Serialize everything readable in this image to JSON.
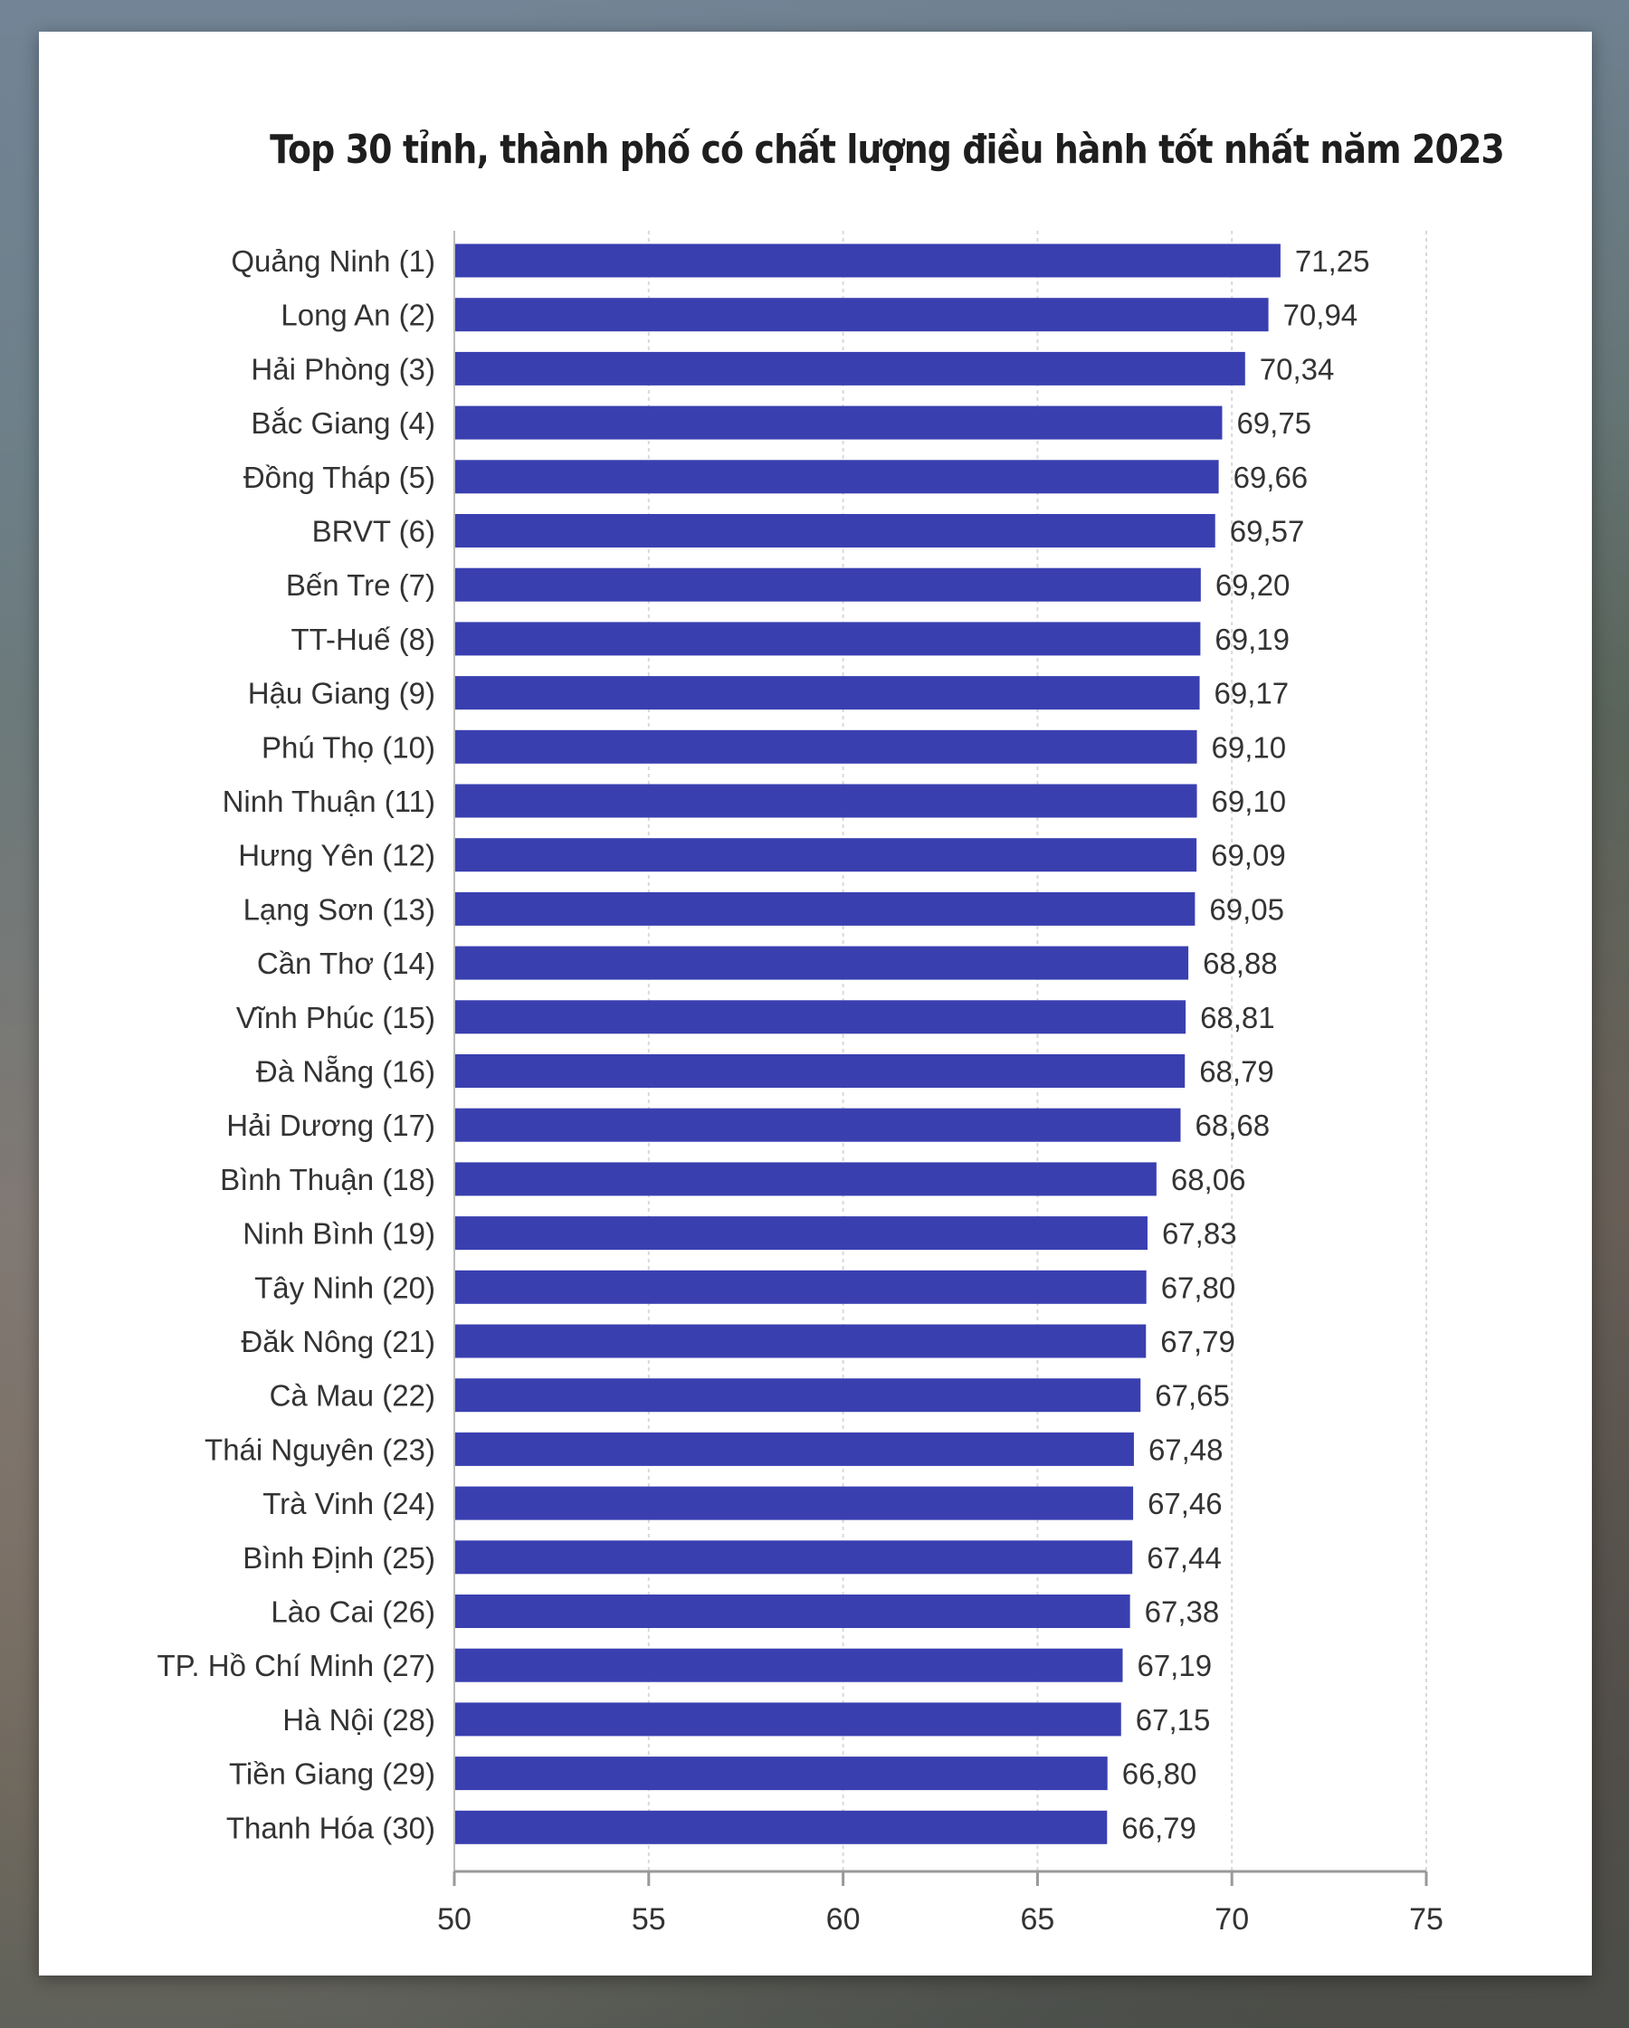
{
  "chart_data": {
    "type": "bar",
    "orientation": "horizontal",
    "title": "Top 30 tỉnh, thành phố có chất lượng điều hành tốt nhất năm 2023",
    "xlabel": "",
    "ylabel": "",
    "xlim": [
      50,
      75
    ],
    "xticks": [
      50,
      55,
      60,
      65,
      70,
      75
    ],
    "xtick_labels": [
      "50",
      "55",
      "60",
      "65",
      "70",
      "75"
    ],
    "grid": "vertical dashed",
    "bar_color": "#3a3fb0",
    "categories": [
      "Quảng Ninh (1)",
      "Long An (2)",
      "Hải Phòng (3)",
      "Bắc Giang (4)",
      "Đồng Tháp (5)",
      "BRVT (6)",
      "Bến Tre (7)",
      "TT-Huế (8)",
      "Hậu Giang (9)",
      "Phú Thọ (10)",
      "Ninh Thuận (11)",
      "Hưng Yên (12)",
      "Lạng Sơn (13)",
      "Cần Thơ (14)",
      "Vĩnh Phúc (15)",
      "Đà Nẵng (16)",
      "Hải Dương (17)",
      "Bình Thuận (18)",
      "Ninh Bình (19)",
      "Tây Ninh (20)",
      "Đăk Nông (21)",
      "Cà Mau (22)",
      "Thái Nguyên (23)",
      "Trà Vinh (24)",
      "Bình Định (25)",
      "Lào Cai (26)",
      "TP. Hồ Chí Minh (27)",
      "Hà Nội (28)",
      "Tiền Giang (29)",
      "Thanh Hóa (30)"
    ],
    "values": [
      71.25,
      70.94,
      70.34,
      69.75,
      69.66,
      69.57,
      69.2,
      69.19,
      69.17,
      69.1,
      69.1,
      69.09,
      69.05,
      68.88,
      68.81,
      68.79,
      68.68,
      68.06,
      67.83,
      67.8,
      67.79,
      67.65,
      67.48,
      67.46,
      67.44,
      67.38,
      67.19,
      67.15,
      66.8,
      66.79
    ],
    "value_labels": [
      "71,25",
      "70,94",
      "70,34",
      "69,75",
      "69,66",
      "69,57",
      "69,20",
      "69,19",
      "69,17",
      "69,10",
      "69,10",
      "69,09",
      "69,05",
      "68,88",
      "68,81",
      "68,79",
      "68,68",
      "68,06",
      "67,83",
      "67,80",
      "67,79",
      "67,65",
      "67,48",
      "67,46",
      "67,44",
      "67,38",
      "67,19",
      "67,15",
      "66,80",
      "66,79"
    ]
  }
}
